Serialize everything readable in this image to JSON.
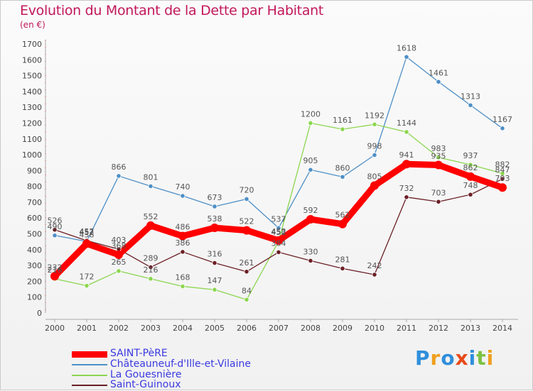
{
  "title": "Evolution du Montant de la Dette par Habitant",
  "subtitle": "(en €)",
  "logo": [
    "P",
    "r",
    "o",
    "x",
    "i",
    "t",
    "i"
  ],
  "chart_data": {
    "type": "line",
    "title": "Evolution du Montant de la Dette par Habitant",
    "unit": "(en €)",
    "x": [
      "2000",
      "2001",
      "2002",
      "2003",
      "2004",
      "2005",
      "2006",
      "2007",
      "2008",
      "2009",
      "2010",
      "2011",
      "2012",
      "2013",
      "2014"
    ],
    "ylim": [
      0,
      1700
    ],
    "yticks": [
      0,
      100,
      200,
      300,
      400,
      500,
      600,
      700,
      800,
      900,
      1000,
      1100,
      1200,
      1300,
      1400,
      1500,
      1600,
      1700
    ],
    "grid": false,
    "legend_position": "bottom-left",
    "series": [
      {
        "name": "Châteauneuf-d'Ille-et-Vilaine",
        "color": "#4e8fc6",
        "values": [
          490,
          452,
          866,
          801,
          740,
          673,
          720,
          537,
          905,
          860,
          998,
          1618,
          1461,
          1313,
          1167
        ]
      },
      {
        "name": "La Gouesnière",
        "color": "#8cd650",
        "values": [
          216,
          172,
          265,
          216,
          168,
          147,
          84,
          452,
          1200,
          1161,
          1192,
          1144,
          983,
          937,
          882
        ]
      },
      {
        "name": "Saint-Guinoux",
        "color": "#6b1f26",
        "values": [
          526,
          457,
          403,
          289,
          386,
          316,
          261,
          384,
          330,
          281,
          242,
          732,
          703,
          748,
          847
        ]
      },
      {
        "name": "SAINT-PèRE",
        "color": "#ff0000",
        "values": [
          232,
          438,
          368,
          552,
          486,
          538,
          522,
          458,
          592,
          562,
          805,
          941,
          935,
          862,
          793
        ]
      }
    ]
  }
}
